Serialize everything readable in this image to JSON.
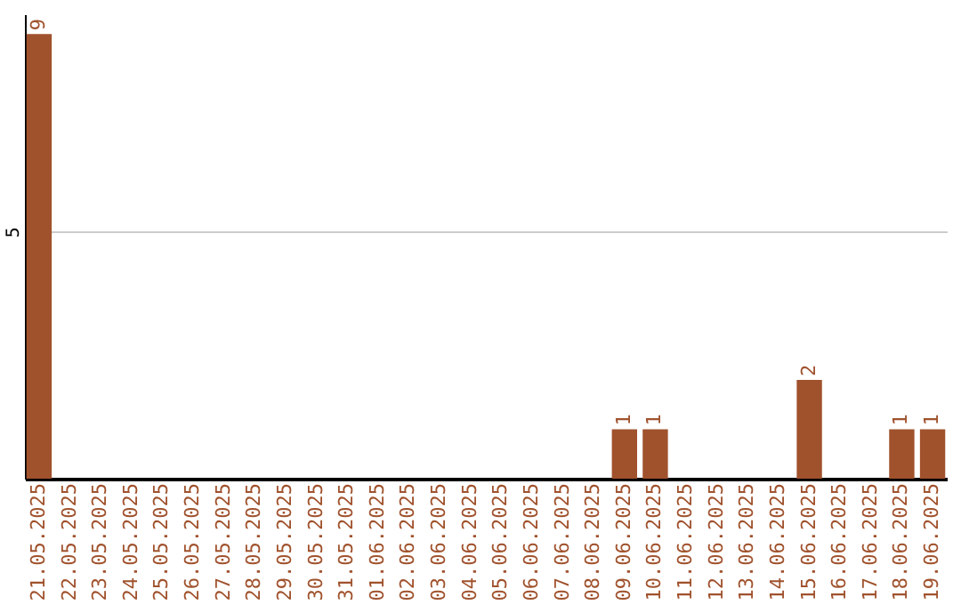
{
  "chart_data": {
    "type": "bar",
    "categories": [
      "21.05.2025",
      "22.05.2025",
      "23.05.2025",
      "24.05.2025",
      "25.05.2025",
      "26.05.2025",
      "27.05.2025",
      "28.05.2025",
      "29.05.2025",
      "30.05.2025",
      "31.05.2025",
      "01.06.2025",
      "02.06.2025",
      "03.06.2025",
      "04.06.2025",
      "05.06.2025",
      "06.06.2025",
      "07.06.2025",
      "08.06.2025",
      "09.06.2025",
      "10.06.2025",
      "11.06.2025",
      "12.06.2025",
      "13.06.2025",
      "14.06.2025",
      "15.06.2025",
      "16.06.2025",
      "17.06.2025",
      "18.06.2025",
      "19.06.2025"
    ],
    "values": [
      9,
      0,
      0,
      0,
      0,
      0,
      0,
      0,
      0,
      0,
      0,
      0,
      0,
      0,
      0,
      0,
      0,
      0,
      0,
      1,
      1,
      0,
      0,
      0,
      0,
      2,
      0,
      0,
      1,
      1
    ],
    "value_labels": [
      "9",
      null,
      null,
      null,
      null,
      null,
      null,
      null,
      null,
      null,
      null,
      null,
      null,
      null,
      null,
      null,
      null,
      null,
      null,
      "1",
      "1",
      null,
      null,
      null,
      null,
      "2",
      null,
      null,
      "1",
      "1"
    ],
    "color": "#a0522d",
    "ylim": [
      0,
      9.4
    ],
    "yticks": [
      5
    ],
    "grid": "y"
  }
}
